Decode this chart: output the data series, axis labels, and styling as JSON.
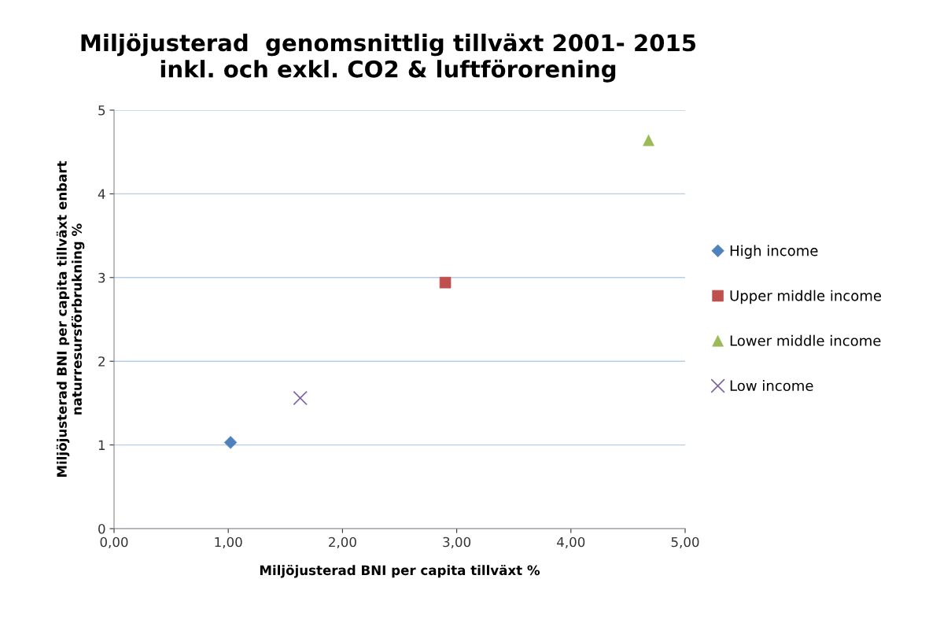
{
  "chart_data": {
    "type": "scatter",
    "title": "Miljöjusterad  genomsnittlig tillväxt 2001- 2015\ninkl. och exkl. CO2 & luftförorening",
    "xlabel": "Miljöjusterad BNI per capita tillväxt %",
    "ylabel": "Miljöjusterad BNI per capita tillväxt enbart\nnaturresursförbrukning %",
    "series": [
      {
        "name": "High income",
        "color": "#4f81bd",
        "marker": "diamond",
        "x": [
          1.02
        ],
        "values": [
          1.03
        ]
      },
      {
        "name": "Upper middle income",
        "color": "#c0504d",
        "marker": "square",
        "x": [
          2.9
        ],
        "values": [
          2.94
        ]
      },
      {
        "name": "Lower middle income",
        "color": "#9bbb59",
        "marker": "triangle",
        "x": [
          4.68
        ],
        "values": [
          4.64
        ]
      },
      {
        "name": "Low income",
        "color": "#8064a2",
        "marker": "cross",
        "x": [
          1.63
        ],
        "values": [
          1.56
        ]
      }
    ],
    "xlim": [
      0,
      5
    ],
    "xticks": [
      {
        "value": 0,
        "label": "0,00"
      },
      {
        "value": 1,
        "label": "1,00"
      },
      {
        "value": 2,
        "label": "2,00"
      },
      {
        "value": 3,
        "label": "3,00"
      },
      {
        "value": 4,
        "label": "4,00"
      },
      {
        "value": 5,
        "label": "5,00"
      }
    ],
    "ylim": [
      0,
      5
    ],
    "yticks": [
      0,
      1,
      2,
      3,
      4,
      5
    ],
    "grid": "y",
    "legend": "right"
  }
}
